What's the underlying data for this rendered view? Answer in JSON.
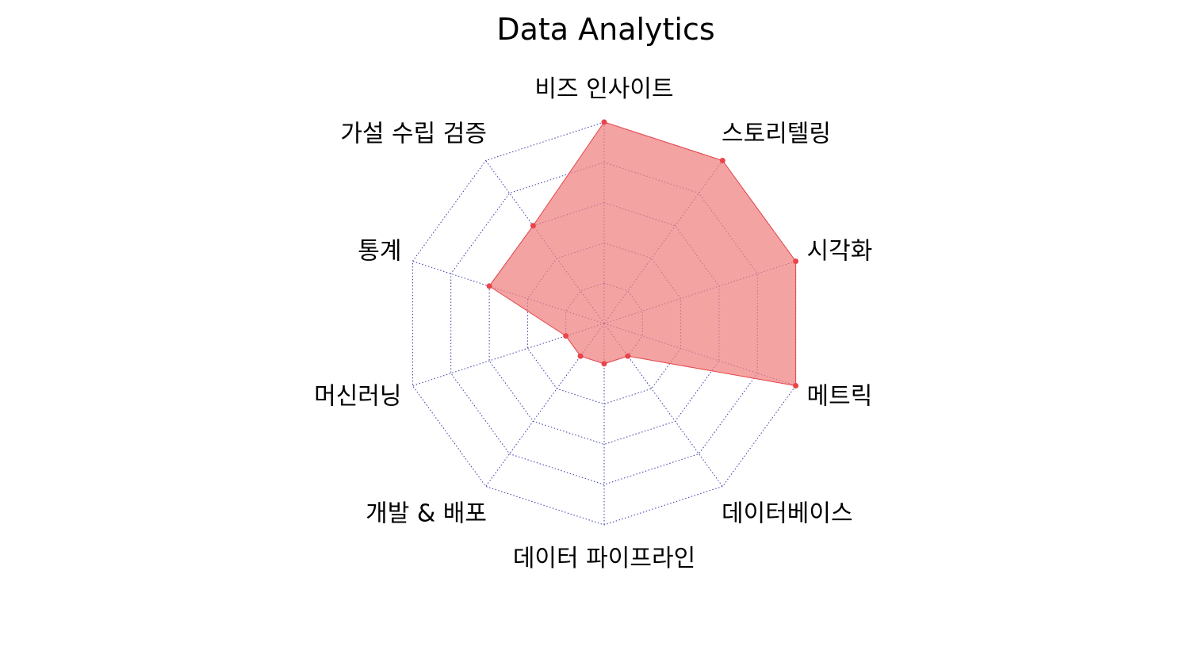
{
  "chart_data": {
    "type": "radar",
    "title": "Data Analytics",
    "axes": [
      "비즈 인사이트",
      "스토리텔링",
      "시각화",
      "메트릭",
      "데이터베이스",
      "데이터 파이프라인",
      "개발 & 배포",
      "머신러닝",
      "통계",
      "가설 수립 검증"
    ],
    "series": [
      {
        "values": [
          5,
          5,
          5,
          5,
          1,
          1,
          1,
          1,
          3,
          3
        ],
        "color": "#e8454a",
        "fill": "#f08080"
      }
    ],
    "rlim": [
      0,
      5
    ],
    "rings": 5,
    "grid": true,
    "grid_color": "#3a3aa8"
  }
}
